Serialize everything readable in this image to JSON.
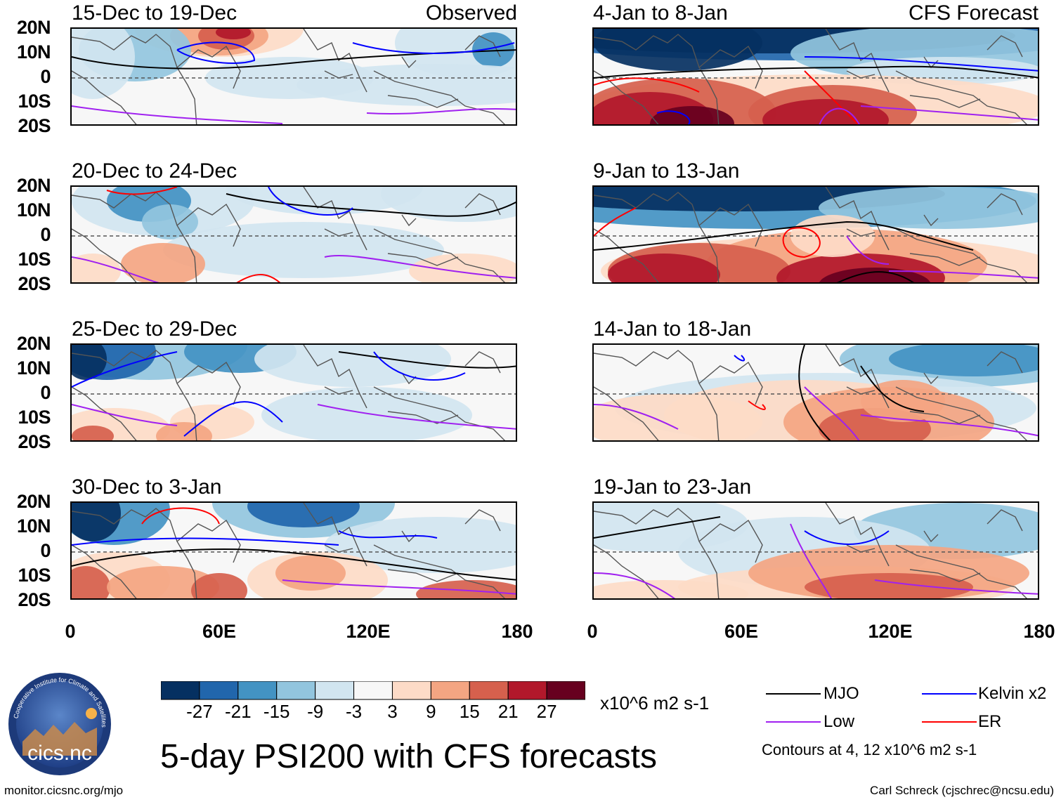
{
  "observed_label": "Observed",
  "forecast_label": "CFS Forecast",
  "panels": [
    {
      "title": "15-Dec to 19-Dec",
      "type": "observed"
    },
    {
      "title": "20-Dec to 24-Dec",
      "type": "observed"
    },
    {
      "title": "25-Dec to 29-Dec",
      "type": "observed"
    },
    {
      "title": "30-Dec to 3-Jan",
      "type": "observed"
    },
    {
      "title": "4-Jan to 8-Jan",
      "type": "forecast"
    },
    {
      "title": "9-Jan to 13-Jan",
      "type": "forecast"
    },
    {
      "title": "14-Jan to 18-Jan",
      "type": "forecast"
    },
    {
      "title": "19-Jan to 23-Jan",
      "type": "forecast"
    }
  ],
  "lat_labels": [
    "20N",
    "10N",
    "0",
    "10S",
    "20S"
  ],
  "lon_labels": [
    "0",
    "60E",
    "120E",
    "180"
  ],
  "colorbar": {
    "colors": [
      "#053061",
      "#2166ac",
      "#4393c3",
      "#92c5de",
      "#d1e5f0",
      "#f7f7f7",
      "#fddbc7",
      "#f4a582",
      "#d6604d",
      "#b2182b",
      "#67001f"
    ],
    "labels": [
      "-27",
      "-21",
      "-15",
      "-9",
      "-3",
      "3",
      "9",
      "15",
      "21",
      "27"
    ],
    "units": "x10^6 m2 s-1"
  },
  "main_title": "5-day PSI200 with CFS forecasts",
  "legend": [
    {
      "label": "MJO",
      "color": "#000000"
    },
    {
      "label": "Kelvin x2",
      "color": "#0000ff"
    },
    {
      "label": "Low",
      "color": "#a020f0"
    },
    {
      "label": "ER",
      "color": "#ff0000"
    }
  ],
  "contour_note": "Contours at 4, 12 x10^6 m2 s-1",
  "footer_left": "monitor.cicsnc.org/mjo",
  "footer_right": "Carl Schreck (cjschrec@ncsu.edu)",
  "logo_text": "cics.nc",
  "logo_ring_text": "Cooperative Institute for Climate and Satellites",
  "palette": {
    "coast": "#555555",
    "equator": "#555555"
  }
}
